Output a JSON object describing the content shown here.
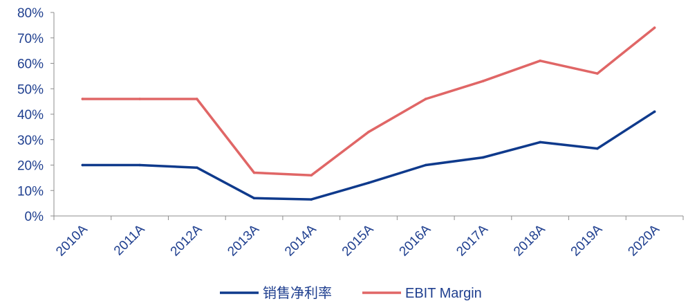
{
  "chart_data": {
    "type": "line",
    "title": "",
    "xlabel": "",
    "ylabel": "",
    "categories": [
      "2010A",
      "2011A",
      "2012A",
      "2013A",
      "2014A",
      "2015A",
      "2016A",
      "2017A",
      "2018A",
      "2019A",
      "2020A"
    ],
    "ylim": [
      0,
      80
    ],
    "yticks": [
      "0%",
      "10%",
      "20%",
      "30%",
      "40%",
      "50%",
      "60%",
      "70%",
      "80%"
    ],
    "grid": false,
    "legend_position": "bottom",
    "series": [
      {
        "name": "销售净利率",
        "color": "#0f3a8c",
        "values": [
          20,
          20,
          19,
          7,
          6.5,
          13,
          20,
          23,
          29,
          26.5,
          41
        ]
      },
      {
        "name": "EBIT Margin",
        "color": "#e06666",
        "values": [
          46,
          46,
          46,
          17,
          16,
          33,
          46,
          53,
          61,
          56,
          74
        ]
      }
    ]
  }
}
